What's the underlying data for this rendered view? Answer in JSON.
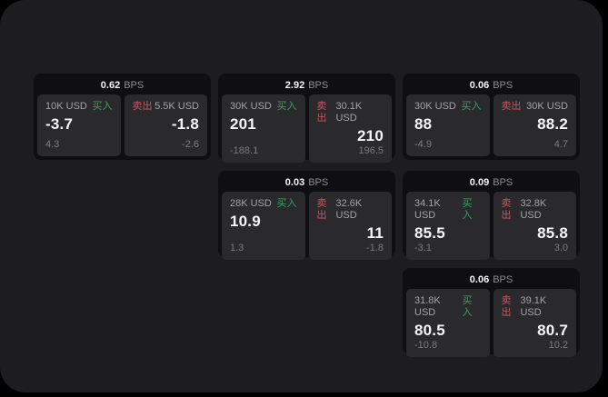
{
  "labels": {
    "bps_unit": "BPS",
    "buy": "买入",
    "sell": "卖出"
  },
  "colors": {
    "page_bg": "#000000",
    "panel_bg": "#1d1d1f",
    "card_bg": "#0f0f11",
    "subpanel_bg": "#2a2a2c",
    "buy": "#3c9e63",
    "sell": "#c85564",
    "primary_text": "#f5f5f7",
    "muted_text": "#a3a3a7",
    "dim_text": "#7c7c80"
  },
  "cards": [
    {
      "col": 1,
      "row": 1,
      "bps": "0.62",
      "buy": {
        "notional": "10K USD",
        "price": "-3.7",
        "delta": "4.3"
      },
      "sell": {
        "notional": "5.5K USD",
        "price": "-1.8",
        "delta": "-2.6"
      }
    },
    {
      "col": 2,
      "row": 1,
      "bps": "2.92",
      "buy": {
        "notional": "30K USD",
        "price": "201",
        "delta": "-188.1"
      },
      "sell": {
        "notional": "30.1K USD",
        "price": "210",
        "delta": "196.5"
      }
    },
    {
      "col": 3,
      "row": 1,
      "bps": "0.06",
      "buy": {
        "notional": "30K USD",
        "price": "88",
        "delta": "-4.9"
      },
      "sell": {
        "notional": "30K USD",
        "price": "88.2",
        "delta": "4.7"
      }
    },
    {
      "col": 2,
      "row": 2,
      "bps": "0.03",
      "buy": {
        "notional": "28K USD",
        "price": "10.9",
        "delta": "1.3"
      },
      "sell": {
        "notional": "32.6K USD",
        "price": "11",
        "delta": "-1.8"
      }
    },
    {
      "col": 3,
      "row": 2,
      "bps": "0.09",
      "buy": {
        "notional": "34.1K USD",
        "price": "85.5",
        "delta": "-3.1"
      },
      "sell": {
        "notional": "32.8K USD",
        "price": "85.8",
        "delta": "3.0"
      }
    },
    {
      "col": 3,
      "row": 3,
      "bps": "0.06",
      "buy": {
        "notional": "31.8K USD",
        "price": "80.5",
        "delta": "-10.8"
      },
      "sell": {
        "notional": "39.1K USD",
        "price": "80.7",
        "delta": "10.2"
      }
    }
  ]
}
